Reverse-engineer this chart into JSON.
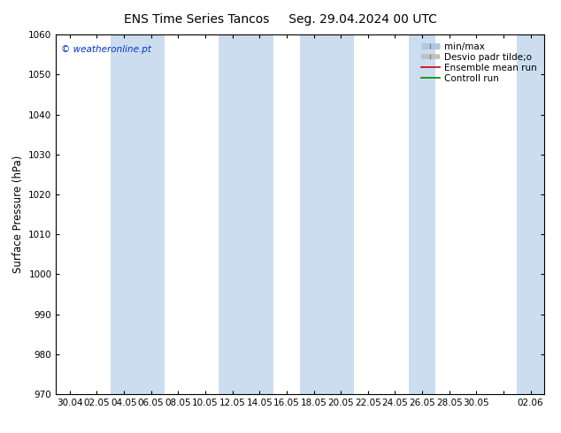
{
  "title_left": "ENS Time Series Tancos",
  "title_right": "Seg. 29.04.2024 00 UTC",
  "ylabel": "Surface Pressure (hPa)",
  "ylim": [
    970,
    1060
  ],
  "yticks": [
    970,
    980,
    990,
    1000,
    1010,
    1020,
    1030,
    1040,
    1050,
    1060
  ],
  "xtick_labels": [
    "30.04",
    "02.05",
    "04.05",
    "06.05",
    "08.05",
    "10.05",
    "12.05",
    "14.05",
    "16.05",
    "18.05",
    "20.05",
    "22.05",
    "24.05",
    "26.05",
    "28.05",
    "30.05",
    "",
    "02.06"
  ],
  "bg_color": "#ffffff",
  "plot_bg_color": "#ffffff",
  "band_color": "#ccddf0",
  "watermark": "© weatheronline.pt",
  "watermark_color": "#0033cc",
  "legend_labels": [
    "min/max",
    "Desvio padr tilde;o",
    "Ensemble mean run",
    "Controll run"
  ],
  "legend_colors": [
    "#b0c8e0",
    "#c0c0c0",
    "#cc0000",
    "#008800"
  ],
  "title_fontsize": 10,
  "tick_fontsize": 7.5,
  "ylabel_fontsize": 8.5,
  "legend_fontsize": 7.5,
  "watermark_fontsize": 7.5
}
